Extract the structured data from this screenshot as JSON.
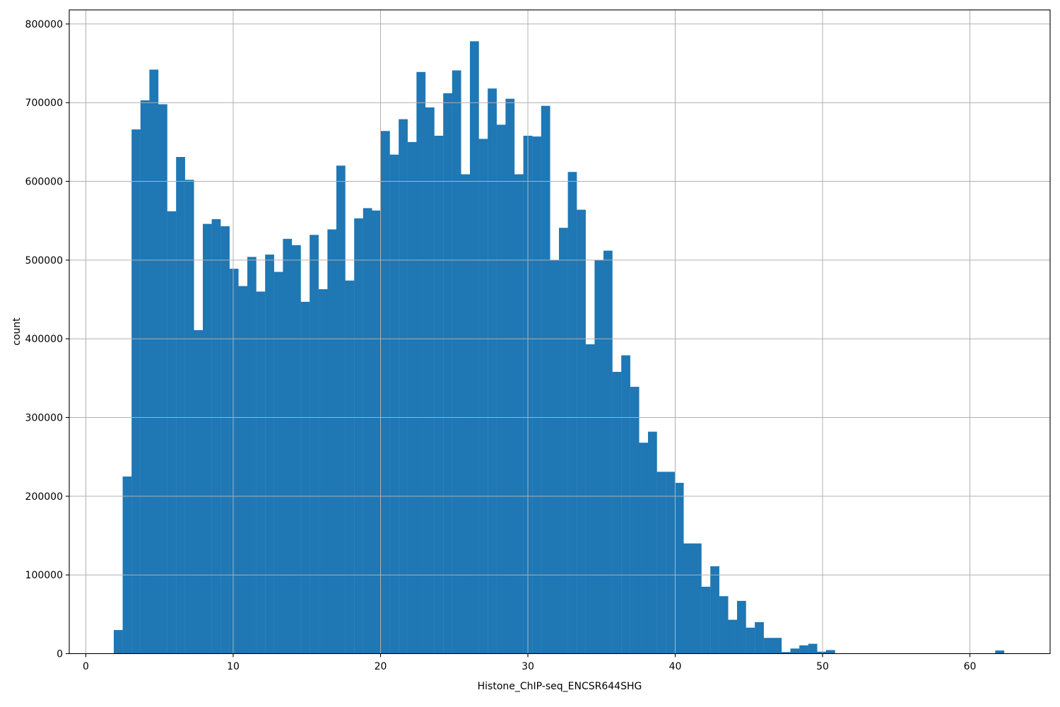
{
  "chart_data": {
    "type": "bar",
    "subtype": "histogram",
    "title": "",
    "xlabel": "Histone_ChIP-seq_ENCSR644SHG",
    "ylabel": "count",
    "bar_color": "#1f77b4",
    "grid_color": "#b0b0b0",
    "spine_color": "#000000",
    "grid_on": true,
    "grid_above_bars": true,
    "legend": "none",
    "xlim": [
      -1.13,
      65.44
    ],
    "ylim": [
      0,
      818000
    ],
    "xticks": [
      0,
      10,
      20,
      30,
      40,
      50,
      60
    ],
    "yticks": [
      0,
      100000,
      200000,
      300000,
      400000,
      500000,
      600000,
      700000,
      800000
    ],
    "bin_start": 1.894,
    "bin_width": 0.6043,
    "num_bins": 100,
    "values": [
      30000,
      225000,
      666000,
      703000,
      742000,
      698000,
      562000,
      631000,
      602000,
      411000,
      546000,
      552000,
      543000,
      489000,
      467000,
      504000,
      460000,
      507000,
      485000,
      527000,
      519000,
      447000,
      532000,
      463000,
      539000,
      620000,
      474000,
      553000,
      566000,
      563000,
      664000,
      634000,
      679000,
      650000,
      739000,
      694000,
      658000,
      712000,
      741000,
      609000,
      778000,
      654000,
      718000,
      672000,
      705000,
      609000,
      658000,
      657000,
      696000,
      500000,
      541000,
      612000,
      564000,
      393000,
      500000,
      512000,
      358000,
      379000,
      339000,
      268000,
      282000,
      231000,
      231000,
      217000,
      140000,
      140000,
      85000,
      111000,
      73000,
      43000,
      67000,
      33000,
      40000,
      20000,
      20000,
      2000,
      6500,
      10500,
      12500,
      2500,
      4500,
      0,
      0,
      0,
      0,
      0,
      0,
      0,
      0,
      0,
      0,
      0,
      0,
      0,
      0,
      0,
      0,
      0,
      0,
      4000
    ]
  }
}
